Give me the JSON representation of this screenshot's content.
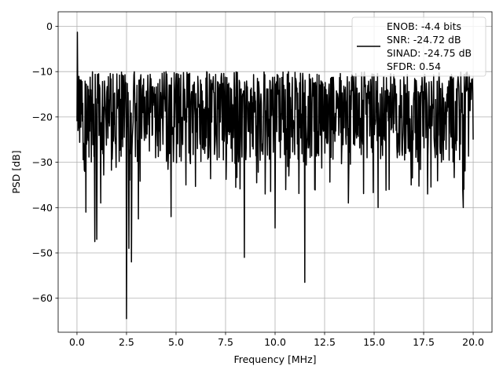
{
  "chart_data": {
    "type": "line",
    "title": "",
    "xlabel": "Frequency [MHz]",
    "ylabel": "PSD [dB]",
    "xlim": [
      -0.95,
      20.95
    ],
    "ylim": [
      -67.5,
      3.2
    ],
    "xticks": [
      0.0,
      2.5,
      5.0,
      7.5,
      10.0,
      12.5,
      15.0,
      17.5,
      20.0
    ],
    "xtick_labels": [
      "0.0",
      "2.5",
      "5.0",
      "7.5",
      "10.0",
      "12.5",
      "15.0",
      "17.5",
      "20.0"
    ],
    "yticks": [
      0,
      -10,
      -20,
      -30,
      -40,
      -50,
      -60
    ],
    "ytick_labels": [
      "0",
      "−10",
      "−20",
      "−30",
      "−40",
      "−50",
      "−60"
    ],
    "grid": true,
    "legend": {
      "placement": "top-right",
      "lines": [
        "ENOB: -4.4 bits",
        "SNR: -24.72 dB",
        "SINAD: -24.75 dB",
        "SFDR: 0.54"
      ]
    },
    "series": [
      {
        "color": "#000000",
        "x_range": [
          0,
          20
        ],
        "points_approx": 1024,
        "envelope": {
          "typical_max_db": -10,
          "typical_min_db": -30,
          "mean_db": -19
        },
        "notable_points": [
          {
            "x": 0.02,
            "y": -1.3
          },
          {
            "x": 0.05,
            "y": -23
          },
          {
            "x": 0.45,
            "y": -41
          },
          {
            "x": 0.9,
            "y": -47.5
          },
          {
            "x": 1.0,
            "y": -47
          },
          {
            "x": 1.2,
            "y": -39
          },
          {
            "x": 2.5,
            "y": -64.5
          },
          {
            "x": 2.62,
            "y": -49
          },
          {
            "x": 2.75,
            "y": -52
          },
          {
            "x": 3.1,
            "y": -42.5
          },
          {
            "x": 4.75,
            "y": -42
          },
          {
            "x": 5.5,
            "y": -35
          },
          {
            "x": 8.45,
            "y": -51
          },
          {
            "x": 9.5,
            "y": -37
          },
          {
            "x": 10.0,
            "y": -44.5
          },
          {
            "x": 11.5,
            "y": -56.5
          },
          {
            "x": 12.0,
            "y": -36
          },
          {
            "x": 13.7,
            "y": -39
          },
          {
            "x": 15.2,
            "y": -40
          },
          {
            "x": 17.7,
            "y": -37
          },
          {
            "x": 19.5,
            "y": -40
          },
          {
            "x": 20.0,
            "y": -25
          }
        ]
      }
    ]
  }
}
